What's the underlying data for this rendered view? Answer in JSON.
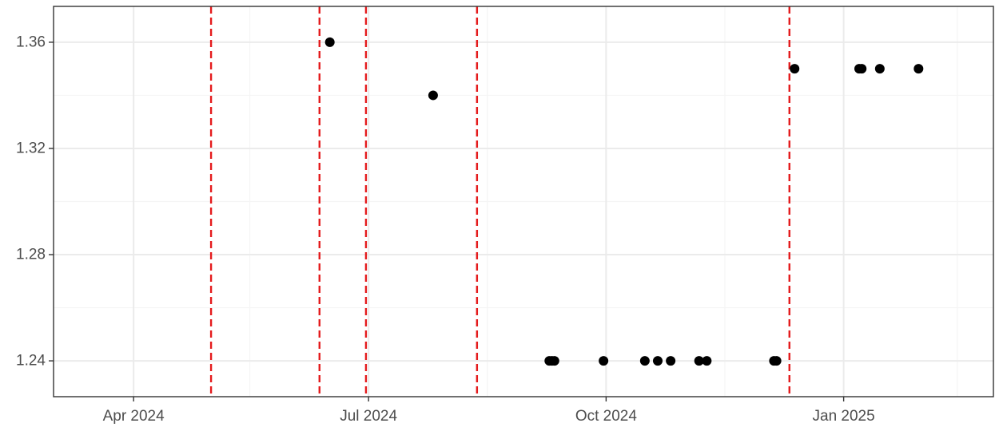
{
  "chart_data": {
    "type": "scatter",
    "title": "",
    "xlabel": "",
    "ylabel": "",
    "x_axis_type": "date",
    "xlim": [
      "2024-03-01",
      "2025-02-28"
    ],
    "ylim": [
      1.2265,
      1.3735
    ],
    "x_ticks": [
      {
        "date": "2024-04-01",
        "label": "Apr 2024"
      },
      {
        "date": "2024-07-01",
        "label": "Jul 2024"
      },
      {
        "date": "2024-10-01",
        "label": "Oct 2024"
      },
      {
        "date": "2025-01-01",
        "label": "Jan 2025"
      }
    ],
    "y_ticks": [
      {
        "value": 1.24,
        "label": "1.24"
      },
      {
        "value": 1.28,
        "label": "1.28"
      },
      {
        "value": 1.32,
        "label": "1.32"
      },
      {
        "value": 1.36,
        "label": "1.36"
      }
    ],
    "y_minor_ticks": [
      1.26,
      1.3,
      1.34
    ],
    "x_minor_ticks": [
      "2024-05-16",
      "2024-08-16",
      "2024-11-16",
      "2025-02-14"
    ],
    "grid": true,
    "colors": {
      "points": "#000000",
      "vlines": "#e41a1c",
      "grid_major": "#ebebeb",
      "grid_minor": "#f5f5f5",
      "panel_border": "#333333"
    },
    "vlines": [
      "2024-05-01",
      "2024-06-12",
      "2024-06-30",
      "2024-08-12",
      "2024-12-11"
    ],
    "series": [
      {
        "points": [
          {
            "x": "2024-06-16",
            "y": 1.36
          },
          {
            "x": "2024-07-26",
            "y": 1.34
          },
          {
            "x": "2024-09-09",
            "y": 1.24
          },
          {
            "x": "2024-09-10",
            "y": 1.24
          },
          {
            "x": "2024-09-11",
            "y": 1.24
          },
          {
            "x": "2024-09-30",
            "y": 1.24
          },
          {
            "x": "2024-10-16",
            "y": 1.24
          },
          {
            "x": "2024-10-21",
            "y": 1.24
          },
          {
            "x": "2024-10-26",
            "y": 1.24
          },
          {
            "x": "2024-11-06",
            "y": 1.24
          },
          {
            "x": "2024-11-09",
            "y": 1.24
          },
          {
            "x": "2024-12-05",
            "y": 1.24
          },
          {
            "x": "2024-12-06",
            "y": 1.24
          },
          {
            "x": "2024-12-13",
            "y": 1.35
          },
          {
            "x": "2025-01-07",
            "y": 1.35
          },
          {
            "x": "2025-01-08",
            "y": 1.35
          },
          {
            "x": "2025-01-15",
            "y": 1.35
          },
          {
            "x": "2025-01-30",
            "y": 1.35
          }
        ]
      }
    ]
  }
}
